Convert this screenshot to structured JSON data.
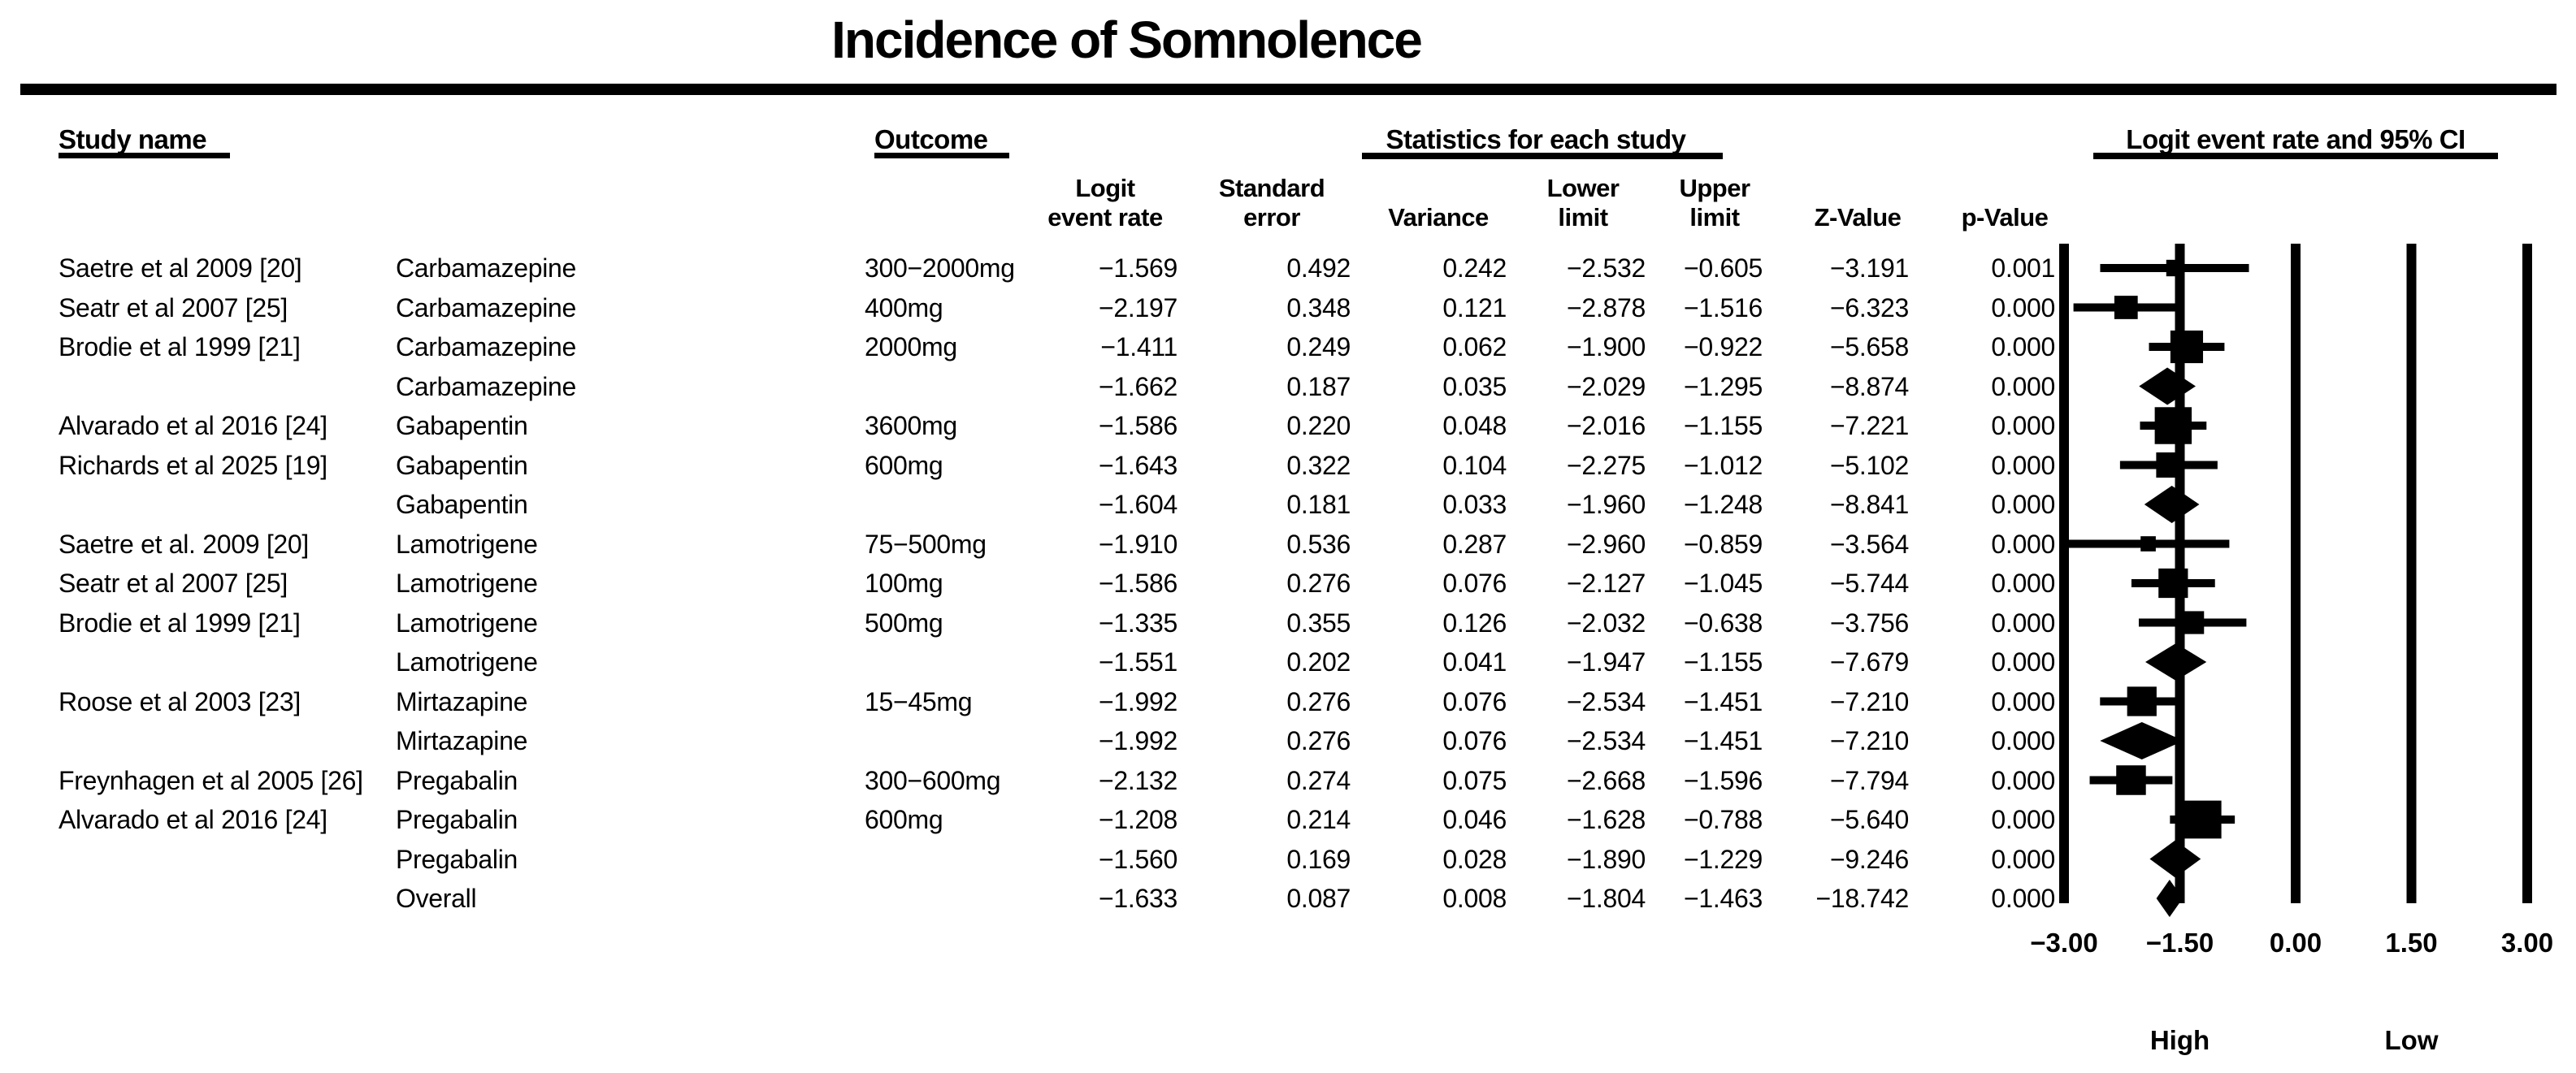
{
  "title": "Incidence of Somnolence",
  "headers": {
    "study": "Study name",
    "outcome": "Outcome",
    "stats_group": "Statistics for each study",
    "plot_group": "Logit event rate and 95% CI",
    "sub_columns": [
      {
        "line1": "Logit",
        "line2": "event rate"
      },
      {
        "line1": "Standard",
        "line2": "error"
      },
      {
        "line1": "",
        "line2": "Variance"
      },
      {
        "line1": "Lower",
        "line2": "limit"
      },
      {
        "line1": "Upper",
        "line2": "limit"
      },
      {
        "line1": "",
        "line2": "Z-Value"
      },
      {
        "line1": "",
        "line2": "p-Value"
      }
    ]
  },
  "chart_data": {
    "type": "forest",
    "title": "Incidence of Somnolence",
    "xlim": [
      -3,
      3
    ],
    "x_ticks": [
      -3.0,
      -1.5,
      0.0,
      1.5,
      3.0
    ],
    "x_tick_labels": [
      "−3.00",
      "−1.50",
      "0.00",
      "1.50",
      "3.00"
    ],
    "direction_labels": {
      "high": "High",
      "high_at": -1.5,
      "low": "Low",
      "low_at": 1.5
    },
    "grid": true,
    "legend_position": "none",
    "rows": [
      {
        "study": "Saetre et al 2009 [20]",
        "outcome": "Carbamazepine",
        "dose": "300−2000mg",
        "logit_event_rate": -1.569,
        "standard_error": 0.492,
        "variance": 0.242,
        "lower_limit": -2.532,
        "upper_limit": -0.605,
        "z_value": -3.191,
        "p_value": 0.001,
        "marker": "square"
      },
      {
        "study": "Seatr et al 2007 [25]",
        "outcome": "Carbamazepine",
        "dose": "400mg",
        "logit_event_rate": -2.197,
        "standard_error": 0.348,
        "variance": 0.121,
        "lower_limit": -2.878,
        "upper_limit": -1.516,
        "z_value": -6.323,
        "p_value": 0.0,
        "marker": "square"
      },
      {
        "study": "Brodie et al 1999 [21]",
        "outcome": "Carbamazepine",
        "dose": "2000mg",
        "logit_event_rate": -1.411,
        "standard_error": 0.249,
        "variance": 0.062,
        "lower_limit": -1.9,
        "upper_limit": -0.922,
        "z_value": -5.658,
        "p_value": 0.0,
        "marker": "square"
      },
      {
        "study": "",
        "outcome": "Carbamazepine",
        "dose": "",
        "logit_event_rate": -1.662,
        "standard_error": 0.187,
        "variance": 0.035,
        "lower_limit": -2.029,
        "upper_limit": -1.295,
        "z_value": -8.874,
        "p_value": 0.0,
        "marker": "diamond"
      },
      {
        "study": "Alvarado et al 2016 [24]",
        "outcome": "Gabapentin",
        "dose": "3600mg",
        "logit_event_rate": -1.586,
        "standard_error": 0.22,
        "variance": 0.048,
        "lower_limit": -2.016,
        "upper_limit": -1.155,
        "z_value": -7.221,
        "p_value": 0.0,
        "marker": "square"
      },
      {
        "study": "Richards et al 2025 [19]",
        "outcome": "Gabapentin",
        "dose": "600mg",
        "logit_event_rate": -1.643,
        "standard_error": 0.322,
        "variance": 0.104,
        "lower_limit": -2.275,
        "upper_limit": -1.012,
        "z_value": -5.102,
        "p_value": 0.0,
        "marker": "square"
      },
      {
        "study": "",
        "outcome": "Gabapentin",
        "dose": "",
        "logit_event_rate": -1.604,
        "standard_error": 0.181,
        "variance": 0.033,
        "lower_limit": -1.96,
        "upper_limit": -1.248,
        "z_value": -8.841,
        "p_value": 0.0,
        "marker": "diamond"
      },
      {
        "study": "Saetre et al. 2009 [20]",
        "outcome": "Lamotrigene",
        "dose": "75−500mg",
        "logit_event_rate": -1.91,
        "standard_error": 0.536,
        "variance": 0.287,
        "lower_limit": -2.96,
        "upper_limit": -0.859,
        "z_value": -3.564,
        "p_value": 0.0,
        "marker": "square"
      },
      {
        "study": "Seatr et al 2007 [25]",
        "outcome": "Lamotrigene",
        "dose": "100mg",
        "logit_event_rate": -1.586,
        "standard_error": 0.276,
        "variance": 0.076,
        "lower_limit": -2.127,
        "upper_limit": -1.045,
        "z_value": -5.744,
        "p_value": 0.0,
        "marker": "square"
      },
      {
        "study": "Brodie et al 1999 [21]",
        "outcome": "Lamotrigene",
        "dose": "500mg",
        "logit_event_rate": -1.335,
        "standard_error": 0.355,
        "variance": 0.126,
        "lower_limit": -2.032,
        "upper_limit": -0.638,
        "z_value": -3.756,
        "p_value": 0.0,
        "marker": "square"
      },
      {
        "study": "",
        "outcome": "Lamotrigene",
        "dose": "",
        "logit_event_rate": -1.551,
        "standard_error": 0.202,
        "variance": 0.041,
        "lower_limit": -1.947,
        "upper_limit": -1.155,
        "z_value": -7.679,
        "p_value": 0.0,
        "marker": "diamond"
      },
      {
        "study": "Roose et al 2003 [23]",
        "outcome": "Mirtazapine",
        "dose": "15−45mg",
        "logit_event_rate": -1.992,
        "standard_error": 0.276,
        "variance": 0.076,
        "lower_limit": -2.534,
        "upper_limit": -1.451,
        "z_value": -7.21,
        "p_value": 0.0,
        "marker": "square"
      },
      {
        "study": "",
        "outcome": "Mirtazapine",
        "dose": "",
        "logit_event_rate": -1.992,
        "standard_error": 0.276,
        "variance": 0.076,
        "lower_limit": -2.534,
        "upper_limit": -1.451,
        "z_value": -7.21,
        "p_value": 0.0,
        "marker": "diamond"
      },
      {
        "study": "Freynhagen et al 2005 [26]",
        "outcome": "Pregabalin",
        "dose": "300−600mg",
        "logit_event_rate": -2.132,
        "standard_error": 0.274,
        "variance": 0.075,
        "lower_limit": -2.668,
        "upper_limit": -1.596,
        "z_value": -7.794,
        "p_value": 0.0,
        "marker": "square"
      },
      {
        "study": "Alvarado et al 2016 [24]",
        "outcome": "Pregabalin",
        "dose": "600mg",
        "logit_event_rate": -1.208,
        "standard_error": 0.214,
        "variance": 0.046,
        "lower_limit": -1.628,
        "upper_limit": -0.788,
        "z_value": -5.64,
        "p_value": 0.0,
        "marker": "square"
      },
      {
        "study": "",
        "outcome": "Pregabalin",
        "dose": "",
        "logit_event_rate": -1.56,
        "standard_error": 0.169,
        "variance": 0.028,
        "lower_limit": -1.89,
        "upper_limit": -1.229,
        "z_value": -9.246,
        "p_value": 0.0,
        "marker": "diamond"
      },
      {
        "study": "",
        "outcome": "Overall",
        "dose": "",
        "logit_event_rate": -1.633,
        "standard_error": 0.087,
        "variance": 0.008,
        "lower_limit": -1.804,
        "upper_limit": -1.463,
        "z_value": -18.742,
        "p_value": 0.0,
        "marker": "diamond"
      }
    ]
  }
}
